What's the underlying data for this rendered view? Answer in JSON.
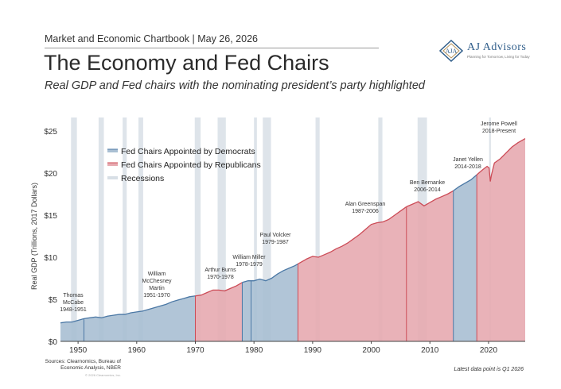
{
  "header": {
    "chartbook": "Market and Economic Chartbook | May 26, 2026",
    "title": "The Economy and Fed Chairs",
    "subtitle": "Real GDP and Fed chairs with the nominating president’s party highlighted"
  },
  "logo": {
    "name": "AJ Advisors",
    "tagline": "Planning for Tomorrow, Living for Today"
  },
  "footer": {
    "sources": "Sources: Clearnomics, Bureau of Economic Analysis, NBER",
    "copyright": "© 2026 Clearnomics, Inc.",
    "latest": "Latest data point is Q1 2026"
  },
  "colors": {
    "democrat": "#a9bfd3",
    "democrat_line": "#4b78a5",
    "republican": "#e7aab0",
    "republican_line": "#cc4c57",
    "recession": "#d8dfe6"
  },
  "chart_data": {
    "type": "area",
    "ylabel": "Real GDP (Trillions, 2017 Dollars)",
    "xlim": [
      1947,
      2026.25
    ],
    "ylim": [
      0,
      25
    ],
    "yticks": [
      0,
      5,
      10,
      15,
      20,
      25
    ],
    "ytick_labels": [
      "$0",
      "$5",
      "$10",
      "$15",
      "$20",
      "$25"
    ],
    "xticks": [
      1950,
      1960,
      1970,
      1980,
      1990,
      2000,
      2010,
      2020
    ],
    "grid": false,
    "legend_position": "top-left",
    "legend": [
      {
        "label": "Fed Chairs Appointed by Democrats",
        "color_key": "democrat"
      },
      {
        "label": "Fed Chairs Appointed by Republicans",
        "color_key": "republican"
      },
      {
        "label": "Recessions",
        "color_key": "recession"
      }
    ],
    "gdp_series": [
      [
        1947,
        2.2
      ],
      [
        1948,
        2.3
      ],
      [
        1949,
        2.3
      ],
      [
        1950,
        2.5
      ],
      [
        1951,
        2.7
      ],
      [
        1952,
        2.8
      ],
      [
        1953,
        2.9
      ],
      [
        1954,
        2.8
      ],
      [
        1955,
        3.0
      ],
      [
        1956,
        3.1
      ],
      [
        1957,
        3.2
      ],
      [
        1958,
        3.2
      ],
      [
        1959,
        3.4
      ],
      [
        1960,
        3.5
      ],
      [
        1961,
        3.6
      ],
      [
        1962,
        3.8
      ],
      [
        1963,
        4.0
      ],
      [
        1964,
        4.2
      ],
      [
        1965,
        4.4
      ],
      [
        1966,
        4.7
      ],
      [
        1967,
        4.9
      ],
      [
        1968,
        5.1
      ],
      [
        1969,
        5.3
      ],
      [
        1970,
        5.4
      ],
      [
        1971,
        5.5
      ],
      [
        1972,
        5.8
      ],
      [
        1973,
        6.1
      ],
      [
        1974,
        6.1
      ],
      [
        1975,
        6.0
      ],
      [
        1976,
        6.3
      ],
      [
        1977,
        6.6
      ],
      [
        1978,
        7.0
      ],
      [
        1979,
        7.2
      ],
      [
        1980,
        7.2
      ],
      [
        1981,
        7.4
      ],
      [
        1982,
        7.2
      ],
      [
        1983,
        7.5
      ],
      [
        1984,
        8.0
      ],
      [
        1985,
        8.4
      ],
      [
        1986,
        8.7
      ],
      [
        1987,
        9.0
      ],
      [
        1988,
        9.4
      ],
      [
        1989,
        9.8
      ],
      [
        1990,
        10.1
      ],
      [
        1991,
        10.0
      ],
      [
        1992,
        10.3
      ],
      [
        1993,
        10.6
      ],
      [
        1994,
        11.0
      ],
      [
        1995,
        11.3
      ],
      [
        1996,
        11.7
      ],
      [
        1997,
        12.2
      ],
      [
        1998,
        12.7
      ],
      [
        1999,
        13.3
      ],
      [
        2000,
        13.9
      ],
      [
        2001,
        14.1
      ],
      [
        2002,
        14.2
      ],
      [
        2003,
        14.5
      ],
      [
        2004,
        15.0
      ],
      [
        2005,
        15.5
      ],
      [
        2006,
        16.0
      ],
      [
        2007,
        16.3
      ],
      [
        2008,
        16.6
      ],
      [
        2009,
        16.1
      ],
      [
        2010,
        16.5
      ],
      [
        2011,
        16.9
      ],
      [
        2012,
        17.2
      ],
      [
        2013,
        17.5
      ],
      [
        2014,
        17.9
      ],
      [
        2015,
        18.4
      ],
      [
        2016,
        18.8
      ],
      [
        2017,
        19.2
      ],
      [
        2018,
        19.8
      ],
      [
        2019,
        20.4
      ],
      [
        2019.75,
        20.8
      ],
      [
        2020.1,
        20.6
      ],
      [
        2020.3,
        19.0
      ],
      [
        2020.5,
        19.8
      ],
      [
        2020.75,
        20.5
      ],
      [
        2021,
        21.2
      ],
      [
        2022,
        21.7
      ],
      [
        2023,
        22.4
      ],
      [
        2024,
        23.1
      ],
      [
        2025,
        23.6
      ],
      [
        2026.25,
        24.1
      ]
    ],
    "chairs": [
      {
        "start": 1947,
        "end": 1951,
        "party": "democrat"
      },
      {
        "start": 1951,
        "end": 1970,
        "party": "democrat"
      },
      {
        "start": 1970,
        "end": 1978,
        "party": "republican"
      },
      {
        "start": 1978,
        "end": 1979.5,
        "party": "democrat"
      },
      {
        "start": 1979.5,
        "end": 1987.5,
        "party": "democrat"
      },
      {
        "start": 1987.5,
        "end": 2006,
        "party": "republican"
      },
      {
        "start": 2006,
        "end": 2014,
        "party": "republican"
      },
      {
        "start": 2014,
        "end": 2018,
        "party": "democrat"
      },
      {
        "start": 2018,
        "end": 2026.25,
        "party": "republican"
      }
    ],
    "recessions": [
      [
        1948.8,
        1949.8
      ],
      [
        1953.5,
        1954.4
      ],
      [
        1957.6,
        1958.3
      ],
      [
        1960.3,
        1961.1
      ],
      [
        1969.9,
        1970.9
      ],
      [
        1973.8,
        1975.2
      ],
      [
        1980.0,
        1980.5
      ],
      [
        1981.5,
        1982.9
      ],
      [
        1990.5,
        1991.2
      ],
      [
        2001.2,
        2001.9
      ],
      [
        2007.9,
        2009.5
      ],
      [
        2020.1,
        2020.4
      ]
    ],
    "annotations": [
      {
        "lines": [
          "Thomas",
          "McCabe",
          "1948-1951"
        ]
      },
      {
        "lines": [
          "William",
          "McChesney",
          "Martin",
          "1951-1970"
        ]
      },
      {
        "lines": [
          "Arthur Burns",
          "1970-1978"
        ]
      },
      {
        "lines": [
          "William Miller",
          "1978-1979"
        ]
      },
      {
        "lines": [
          "Paul Volcker",
          "1979-1987"
        ]
      },
      {
        "lines": [
          "Alan Greenspan",
          "1987-2006"
        ]
      },
      {
        "lines": [
          "Ben Bernanke",
          "2006-2014"
        ]
      },
      {
        "lines": [
          "Janet Yellen",
          "2014-2018"
        ]
      },
      {
        "lines": [
          "Jerome Powell",
          "2018-Present"
        ]
      }
    ]
  }
}
